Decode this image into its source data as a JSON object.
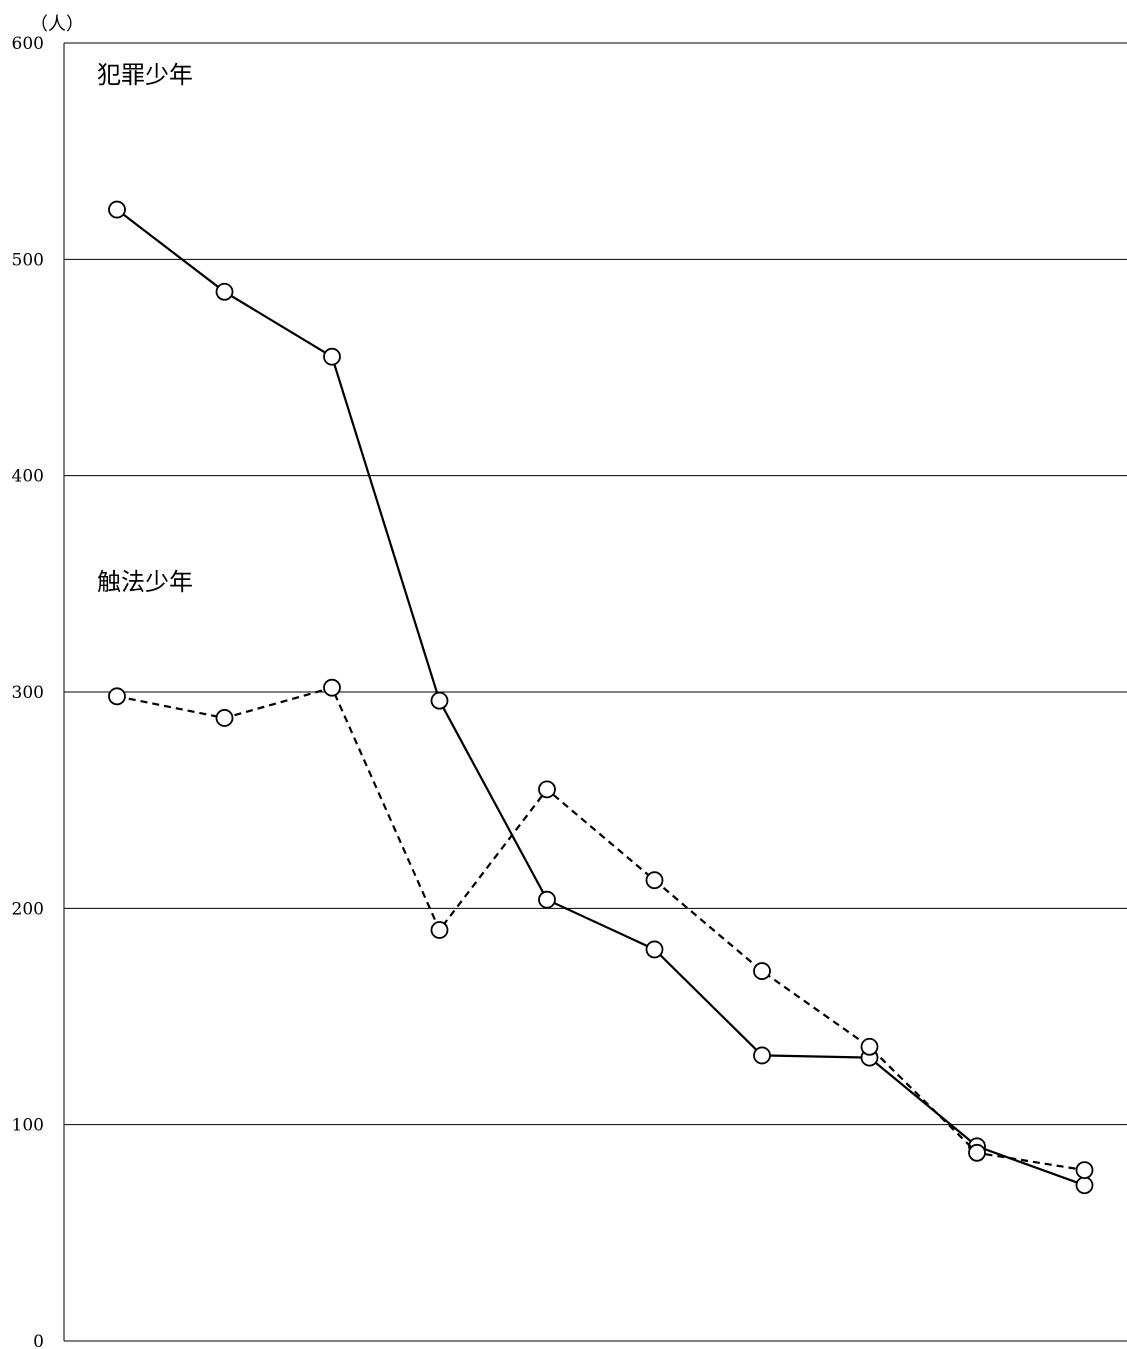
{
  "chart_data": {
    "type": "line",
    "unit_label": "（人）",
    "ylim": [
      0,
      600
    ],
    "yticks": [
      0,
      100,
      200,
      300,
      400,
      500,
      600
    ],
    "ytick_labels": [
      "0",
      "100",
      "200",
      "300",
      "400",
      "500",
      "600"
    ],
    "grid": true,
    "x": [
      1,
      2,
      3,
      4,
      5,
      6,
      7,
      8,
      9,
      10
    ],
    "series": [
      {
        "name": "犯罪少年",
        "style": "solid",
        "color": "#000000",
        "marker": "open-circle",
        "values": [
          523,
          485,
          455,
          296,
          204,
          181,
          132,
          131,
          90,
          72
        ]
      },
      {
        "name": "触法少年",
        "style": "dashed",
        "color": "#000000",
        "marker": "open-circle",
        "values": [
          298,
          288,
          302,
          190,
          255,
          213,
          171,
          136,
          87,
          79
        ]
      }
    ]
  }
}
